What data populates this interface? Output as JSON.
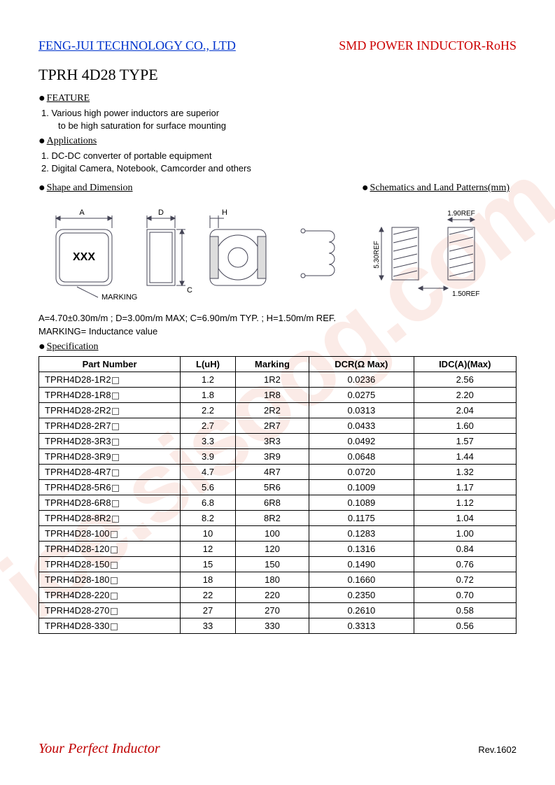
{
  "watermark_text": "ice.sisoog.com",
  "header": {
    "company": "FENG-JUI TECHNOLOGY CO., LTD",
    "product": "SMD POWER INDUCTOR-RoHS"
  },
  "type_title": "TPRH 4D28 TYPE",
  "sections": {
    "feature_title": "FEATURE",
    "feature_lines": [
      "1.    Various high power inductors are superior",
      "to be high saturation for surface mounting"
    ],
    "applications_title": "Applications",
    "applications_lines": [
      "1.    DC-DC converter of portable equipment",
      "2.    Digital Camera, Notebook, Camcorder and others"
    ],
    "shape_title": "Shape and Dimension",
    "schematic_title": "Schematics and Land Patterns(mm)"
  },
  "shape_diagram": {
    "labels": {
      "A": "A",
      "D": "D",
      "H": "H",
      "C": "C",
      "marking": "MARKING",
      "xxx": "XXX"
    },
    "stroke": "#566",
    "fill": "#ffffff"
  },
  "schematic_diagram": {
    "labels": {
      "w": "1.90REF",
      "h": "5.30REF",
      "gap": "1.50REF"
    }
  },
  "dimensions_text": "A=4.70±0.30m/m ; D=3.00m/m MAX; C=6.90m/m TYP. ; H=1.50m/m REF.",
  "marking_text": "MARKING= Inductance value",
  "spec_title": "Specification",
  "table": {
    "columns": [
      "Part Number",
      "L(uH)",
      "Marking",
      "DCR(Ω Max)",
      "IDC(A)(Max)"
    ],
    "rows": [
      [
        "TPRH4D28-1R2",
        "1.2",
        "1R2",
        "0.0236",
        "2.56"
      ],
      [
        "TPRH4D28-1R8",
        "1.8",
        "1R8",
        "0.0275",
        "2.20"
      ],
      [
        "TPRH4D28-2R2",
        "2.2",
        "2R2",
        "0.0313",
        "2.04"
      ],
      [
        "TPRH4D28-2R7",
        "2.7",
        "2R7",
        "0.0433",
        "1.60"
      ],
      [
        "TPRH4D28-3R3",
        "3.3",
        "3R3",
        "0.0492",
        "1.57"
      ],
      [
        "TPRH4D28-3R9",
        "3.9",
        "3R9",
        "0.0648",
        "1.44"
      ],
      [
        "TPRH4D28-4R7",
        "4.7",
        "4R7",
        "0.0720",
        "1.32"
      ],
      [
        "TPRH4D28-5R6",
        "5.6",
        "5R6",
        "0.1009",
        "1.17"
      ],
      [
        "TPRH4D28-6R8",
        "6.8",
        "6R8",
        "0.1089",
        "1.12"
      ],
      [
        "TPRH4D28-8R2",
        "8.2",
        "8R2",
        "0.1175",
        "1.04"
      ],
      [
        "TPRH4D28-100",
        "10",
        "100",
        "0.1283",
        "1.00"
      ],
      [
        "TPRH4D28-120",
        "12",
        "120",
        "0.1316",
        "0.84"
      ],
      [
        "TPRH4D28-150",
        "15",
        "150",
        "0.1490",
        "0.76"
      ],
      [
        "TPRH4D28-180",
        "18",
        "180",
        "0.1660",
        "0.72"
      ],
      [
        "TPRH4D28-220",
        "22",
        "220",
        "0.2350",
        "0.70"
      ],
      [
        "TPRH4D28-270",
        "27",
        "270",
        "0.2610",
        "0.58"
      ],
      [
        "TPRH4D28-330",
        "33",
        "330",
        "0.3313",
        "0.56"
      ]
    ]
  },
  "footer": {
    "slogan": "Your Perfect Inductor",
    "rev": "Rev.1602"
  }
}
